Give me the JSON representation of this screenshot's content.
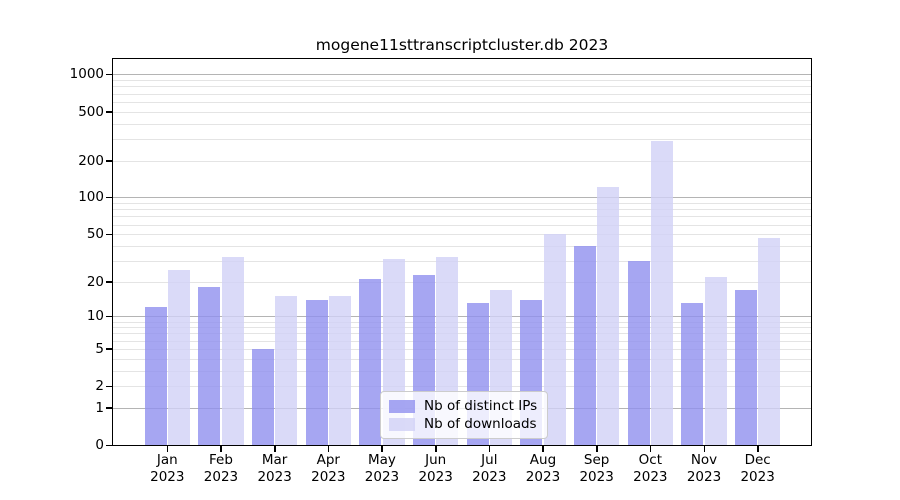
{
  "chart_data": {
    "type": "bar",
    "title": "mogene11sttranscriptcluster.db 2023",
    "categories": [
      "Jan 2023",
      "Feb 2023",
      "Mar 2023",
      "Apr 2023",
      "May 2023",
      "Jun 2023",
      "Jul 2023",
      "Aug 2023",
      "Sep 2023",
      "Oct 2023",
      "Nov 2023",
      "Dec 2023"
    ],
    "month_labels": [
      "Jan",
      "Feb",
      "Mar",
      "Apr",
      "May",
      "Jun",
      "Jul",
      "Aug",
      "Sep",
      "Oct",
      "Nov",
      "Dec"
    ],
    "year_label": "2023",
    "series": [
      {
        "name": "Nb of distinct IPs",
        "color": "#9090ef",
        "values": [
          12,
          18,
          5,
          14,
          21,
          23,
          13,
          14,
          40,
          30,
          13,
          17
        ]
      },
      {
        "name": "Nb of downloads",
        "color": "#d1d1f6",
        "values": [
          25,
          32,
          15,
          15,
          31,
          32,
          17,
          50,
          122,
          288,
          22,
          46
        ]
      }
    ],
    "yscale": "log10(1+y)",
    "yticks": [
      0,
      1,
      2,
      5,
      10,
      20,
      50,
      100,
      200,
      500,
      1000
    ],
    "ylim": [
      0,
      1336
    ],
    "xlabel": "",
    "ylabel": "",
    "grid": "horizontal",
    "gridline_minor_color": "#e4e4e4",
    "gridline_major_color": "#b4b4b4",
    "legend_position": "inside-bottom-center",
    "fill_alpha": 0.8
  }
}
